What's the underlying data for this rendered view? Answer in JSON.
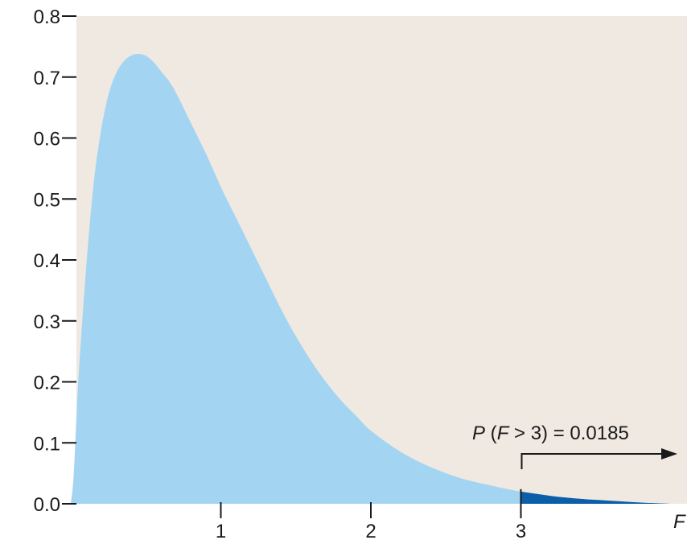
{
  "chart_data": {
    "type": "area",
    "title": "",
    "xlabel": "F",
    "ylabel": "",
    "xlim": [
      0,
      4
    ],
    "ylim": [
      0,
      0.8
    ],
    "x_ticks": [
      {
        "value": 1,
        "label": "1"
      },
      {
        "value": 2,
        "label": "2"
      },
      {
        "value": 3,
        "label": "3"
      }
    ],
    "y_ticks": [
      {
        "value": 0.0,
        "label": "0.0"
      },
      {
        "value": 0.1,
        "label": "0.1"
      },
      {
        "value": 0.2,
        "label": "0.2"
      },
      {
        "value": 0.3,
        "label": "0.3"
      },
      {
        "value": 0.4,
        "label": "0.4"
      },
      {
        "value": 0.5,
        "label": "0.5"
      },
      {
        "value": 0.6,
        "label": "0.6"
      },
      {
        "value": 0.7,
        "label": "0.7"
      },
      {
        "value": 0.8,
        "label": "0.8"
      }
    ],
    "grid": false,
    "series": [
      {
        "x": [
          0.0,
          0.02,
          0.05,
          0.1,
          0.15,
          0.2,
          0.25,
          0.3,
          0.35,
          0.4,
          0.45,
          0.5,
          0.55,
          0.6,
          0.65,
          0.7,
          0.8,
          0.9,
          1.0,
          1.1,
          1.2,
          1.3,
          1.4,
          1.5,
          1.6,
          1.7,
          1.8,
          1.9,
          2.0,
          2.2,
          2.4,
          2.6,
          2.8,
          3.0,
          3.2,
          3.4,
          3.6,
          3.8,
          4.0
        ],
        "y": [
          0.0,
          0.05,
          0.2,
          0.38,
          0.52,
          0.61,
          0.67,
          0.705,
          0.725,
          0.735,
          0.738,
          0.735,
          0.725,
          0.71,
          0.695,
          0.675,
          0.625,
          0.575,
          0.52,
          0.47,
          0.42,
          0.37,
          0.32,
          0.275,
          0.235,
          0.2,
          0.17,
          0.145,
          0.12,
          0.085,
          0.06,
          0.042,
          0.03,
          0.02,
          0.013,
          0.008,
          0.005,
          0.002,
          0.0
        ]
      }
    ],
    "shaded_tail_from": 3,
    "colors": {
      "background": "#efe9e1",
      "fill": "#a3d5f3",
      "tail_fill": "#0b5ea8",
      "axis": "#1a1a1a"
    },
    "annotation": {
      "text_P": "P",
      "text_open": " (",
      "text_F": "F",
      "text_rest": " > 3) = 0.0185"
    }
  }
}
